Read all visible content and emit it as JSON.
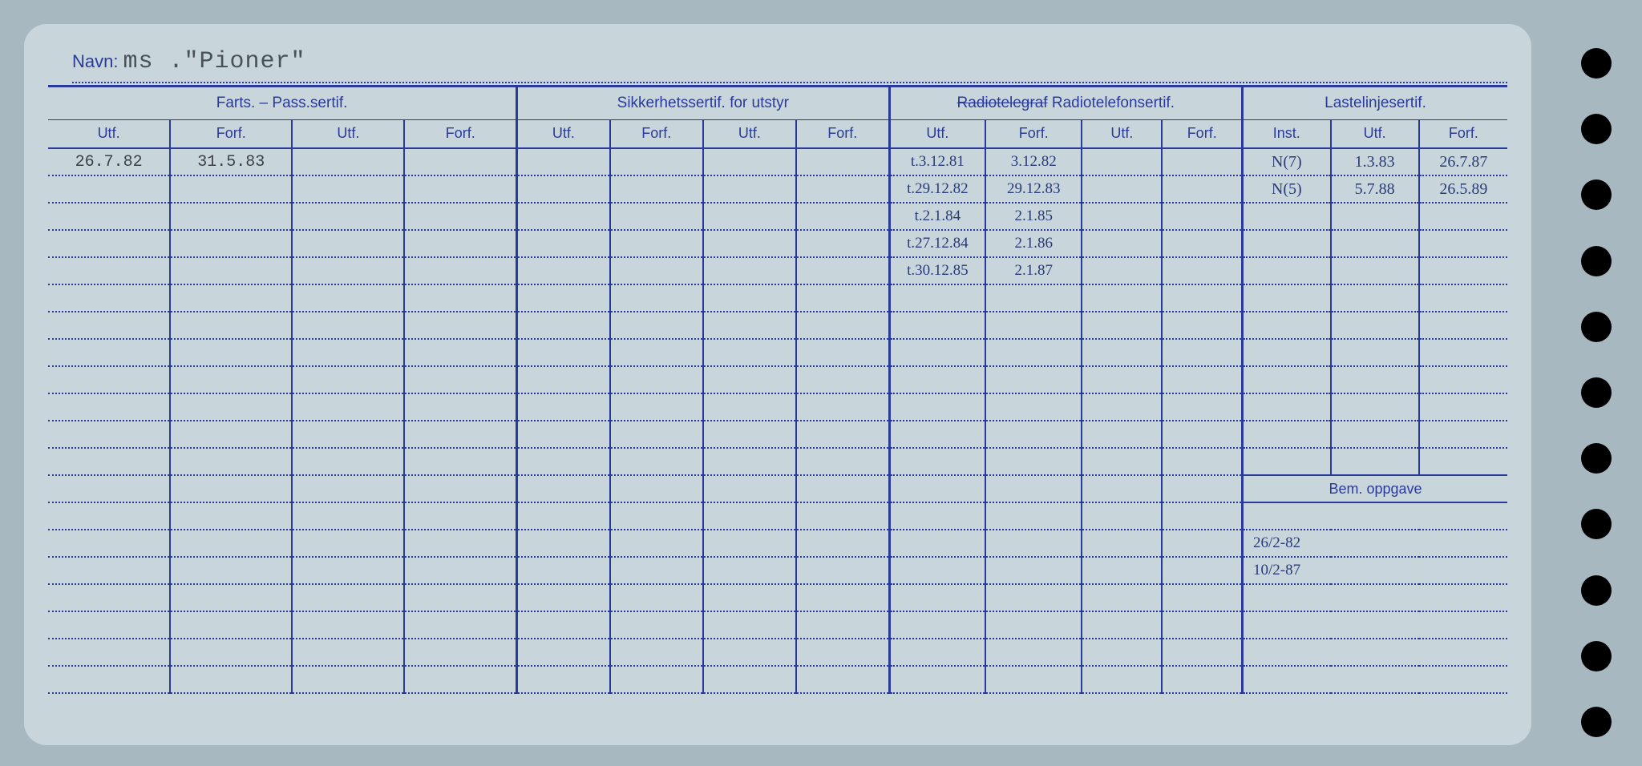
{
  "labels": {
    "navn": "Navn:",
    "bem": "Bem. oppgave"
  },
  "ship_name": "ms .\"Pioner\"",
  "colors": {
    "ink": "#2a3a9a",
    "paper": "#c8d6dc",
    "bg": "#a8b8c0",
    "pencil": "#3a4248",
    "pen": "#2a3a7a"
  },
  "headers": {
    "groups": [
      {
        "label": "Farts. – Pass.sertif.",
        "span": 4
      },
      {
        "label": "Sikkerhetssertif. for utstyr",
        "span": 4
      },
      {
        "label_struck": "Radiotelegraf",
        "label": "Radiotelefonsertif.",
        "span": 4
      },
      {
        "label": "Lastelinjesertif.",
        "span": 3
      }
    ],
    "subs": [
      "Utf.",
      "Forf.",
      "Utf.",
      "Forf.",
      "Utf.",
      "Forf.",
      "Utf.",
      "Forf.",
      "Utf.",
      "Forf.",
      "Utf.",
      "Forf.",
      "Inst.",
      "Utf.",
      "Forf."
    ]
  },
  "col_widths_pct": [
    7.6,
    7.6,
    7.0,
    7.0,
    5.8,
    5.8,
    5.8,
    5.8,
    6.0,
    6.0,
    5.0,
    5.0,
    5.5,
    5.5,
    5.5
  ],
  "rows": [
    {
      "c": [
        "26.7.82",
        "31.5.83",
        "",
        "",
        "",
        "",
        "",
        "",
        "t.3.12.81",
        "3.12.82",
        "",
        "",
        "N(7)",
        "1.3.83",
        "26.7.87"
      ],
      "cls": [
        "",
        "",
        "",
        "",
        "",
        "",
        "",
        "",
        "hand",
        "hand",
        "",
        "",
        "handb",
        "handb",
        "handb"
      ]
    },
    {
      "c": [
        "",
        "",
        "",
        "",
        "",
        "",
        "",
        "",
        "t.29.12.82",
        "29.12.83",
        "",
        "",
        "N(5)",
        "5.7.88",
        "26.5.89"
      ],
      "cls": [
        "",
        "",
        "",
        "",
        "",
        "",
        "",
        "",
        "hand",
        "hand",
        "",
        "",
        "handb",
        "handb",
        "handb"
      ]
    },
    {
      "c": [
        "",
        "",
        "",
        "",
        "",
        "",
        "",
        "",
        "t.2.1.84",
        "2.1.85",
        "",
        "",
        "",
        "",
        ""
      ],
      "cls": [
        "",
        "",
        "",
        "",
        "",
        "",
        "",
        "",
        "hand",
        "hand",
        "",
        "",
        "",
        "",
        ""
      ]
    },
    {
      "c": [
        "",
        "",
        "",
        "",
        "",
        "",
        "",
        "",
        "t.27.12.84",
        "2.1.86",
        "",
        "",
        "",
        "",
        ""
      ],
      "cls": [
        "",
        "",
        "",
        "",
        "",
        "",
        "",
        "",
        "hand",
        "hand",
        "",
        "",
        "",
        "",
        ""
      ]
    },
    {
      "c": [
        "",
        "",
        "",
        "",
        "",
        "",
        "",
        "",
        "t.30.12.85",
        "2.1.87",
        "",
        "",
        "",
        "",
        ""
      ],
      "cls": [
        "",
        "",
        "",
        "",
        "",
        "",
        "",
        "",
        "hand",
        "hand",
        "",
        "",
        "",
        "",
        ""
      ]
    },
    {
      "c": [
        "",
        "",
        "",
        "",
        "",
        "",
        "",
        "",
        "",
        "",
        "",
        "",
        "",
        "",
        ""
      ]
    },
    {
      "c": [
        "",
        "",
        "",
        "",
        "",
        "",
        "",
        "",
        "",
        "",
        "",
        "",
        "",
        "",
        ""
      ]
    },
    {
      "c": [
        "",
        "",
        "",
        "",
        "",
        "",
        "",
        "",
        "",
        "",
        "",
        "",
        "",
        "",
        ""
      ]
    },
    {
      "c": [
        "",
        "",
        "",
        "",
        "",
        "",
        "",
        "",
        "",
        "",
        "",
        "",
        "",
        "",
        ""
      ]
    },
    {
      "c": [
        "",
        "",
        "",
        "",
        "",
        "",
        "",
        "",
        "",
        "",
        "",
        "",
        "",
        "",
        ""
      ]
    },
    {
      "c": [
        "",
        "",
        "",
        "",
        "",
        "",
        "",
        "",
        "",
        "",
        "",
        "",
        "",
        "",
        ""
      ]
    },
    {
      "c": [
        "",
        "",
        "",
        "",
        "",
        "",
        "",
        "",
        "",
        "",
        "",
        "",
        "",
        "",
        ""
      ]
    }
  ],
  "bem_rows": [
    {
      "c": [
        "",
        "",
        "",
        "",
        "",
        "",
        "",
        "",
        "",
        "",
        "",
        ""
      ],
      "bem": ""
    },
    {
      "c": [
        "",
        "",
        "",
        "",
        "",
        "",
        "",
        "",
        "",
        "",
        "",
        ""
      ],
      "bem": "26/2-82",
      "cls_bem": "hand"
    },
    {
      "c": [
        "",
        "",
        "",
        "",
        "",
        "",
        "",
        "",
        "",
        "",
        "",
        ""
      ],
      "bem": "10/2-87",
      "cls_bem": "hand"
    },
    {
      "c": [
        "",
        "",
        "",
        "",
        "",
        "",
        "",
        "",
        "",
        "",
        "",
        ""
      ],
      "bem": ""
    },
    {
      "c": [
        "",
        "",
        "",
        "",
        "",
        "",
        "",
        "",
        "",
        "",
        "",
        ""
      ],
      "bem": ""
    },
    {
      "c": [
        "",
        "",
        "",
        "",
        "",
        "",
        "",
        "",
        "",
        "",
        "",
        ""
      ],
      "bem": ""
    },
    {
      "c": [
        "",
        "",
        "",
        "",
        "",
        "",
        "",
        "",
        "",
        "",
        "",
        ""
      ],
      "bem": ""
    }
  ],
  "n_holes": 11
}
